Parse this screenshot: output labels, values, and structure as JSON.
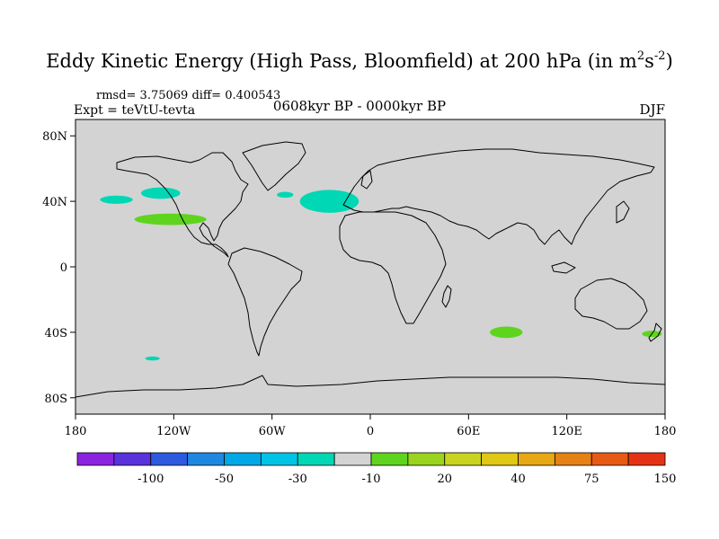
{
  "figure": {
    "title_main": "Eddy Kinetic Energy (High Pass, Bloomfield) at 200 hPa (in m",
    "title_sup1": "2",
    "title_mid": "s",
    "title_sup2": "-2",
    "title_end": ")",
    "stats": "rmsd= 3.75069 diff= 0.400543",
    "expt": "Expt = teVtU-tevta",
    "period": "0608kyr BP - 0000kyr BP",
    "season": "DJF"
  },
  "map": {
    "projection": "cylindrical equidistant",
    "lon_range": [
      -180,
      180
    ],
    "lat_range": [
      -90,
      90
    ],
    "background_color": "#d3d3d3",
    "lat_ticks": [
      {
        "lat": 80,
        "label": "80N"
      },
      {
        "lat": 40,
        "label": "40N"
      },
      {
        "lat": 0,
        "label": "0"
      },
      {
        "lat": -40,
        "label": "40S"
      },
      {
        "lat": -80,
        "label": "80S"
      }
    ],
    "lon_ticks": [
      {
        "lon": -180,
        "label": "180"
      },
      {
        "lon": -120,
        "label": "120W"
      },
      {
        "lon": -60,
        "label": "60W"
      },
      {
        "lon": 0,
        "label": "0"
      },
      {
        "lon": 60,
        "label": "60E"
      },
      {
        "lon": 120,
        "label": "120E"
      },
      {
        "lon": 180,
        "label": "180"
      }
    ],
    "anomaly_patches": [
      {
        "name": "north-pacific-west",
        "color": "#00d7b4",
        "lon": -155,
        "lat": 41,
        "rlon": 10,
        "rlat": 2.5
      },
      {
        "name": "north-pacific-central",
        "color": "#00d7b4",
        "lon": -128,
        "lat": 45,
        "rlon": 12,
        "rlat": 3.5
      },
      {
        "name": "north-pacific-subtropic",
        "color": "#5fd41e",
        "lon": -122,
        "lat": 29,
        "rlon": 22,
        "rlat": 3.5
      },
      {
        "name": "north-atlantic-west",
        "color": "#00d7b4",
        "lon": -52,
        "lat": 44,
        "rlon": 5,
        "rlat": 1.8
      },
      {
        "name": "north-atlantic-east",
        "color": "#00d7b4",
        "lon": -25,
        "lat": 40,
        "rlon": 18,
        "rlat": 7
      },
      {
        "name": "south-indian",
        "color": "#5fd41e",
        "lon": 83,
        "lat": -40,
        "rlon": 10,
        "rlat": 3.5
      },
      {
        "name": "new-zealand",
        "color": "#5fd41e",
        "lon": 172,
        "lat": -41,
        "rlon": 6,
        "rlat": 2
      },
      {
        "name": "south-pacific-small",
        "color": "#00d7b4",
        "lon": -133,
        "lat": -56,
        "rlon": 4.5,
        "rlat": 1.2
      }
    ]
  },
  "colorbar": {
    "colors": [
      "#8a24e0",
      "#5a32dc",
      "#2e5ae0",
      "#1e87e0",
      "#00a8e6",
      "#00c4e6",
      "#00d7b4",
      "#d3d3d3",
      "#5fd41e",
      "#9ad41e",
      "#c8d41e",
      "#e0c814",
      "#e6a814",
      "#e68214",
      "#e65a14",
      "#e63214"
    ],
    "labels": [
      {
        "boundary": 2,
        "label": "-100"
      },
      {
        "boundary": 4,
        "label": "-50"
      },
      {
        "boundary": 6,
        "label": "-30"
      },
      {
        "boundary": 8,
        "label": "-10"
      },
      {
        "boundary": 10,
        "label": "20"
      },
      {
        "boundary": 12,
        "label": "40"
      },
      {
        "boundary": 14,
        "label": "75"
      },
      {
        "boundary": 16,
        "label": "150"
      }
    ]
  }
}
